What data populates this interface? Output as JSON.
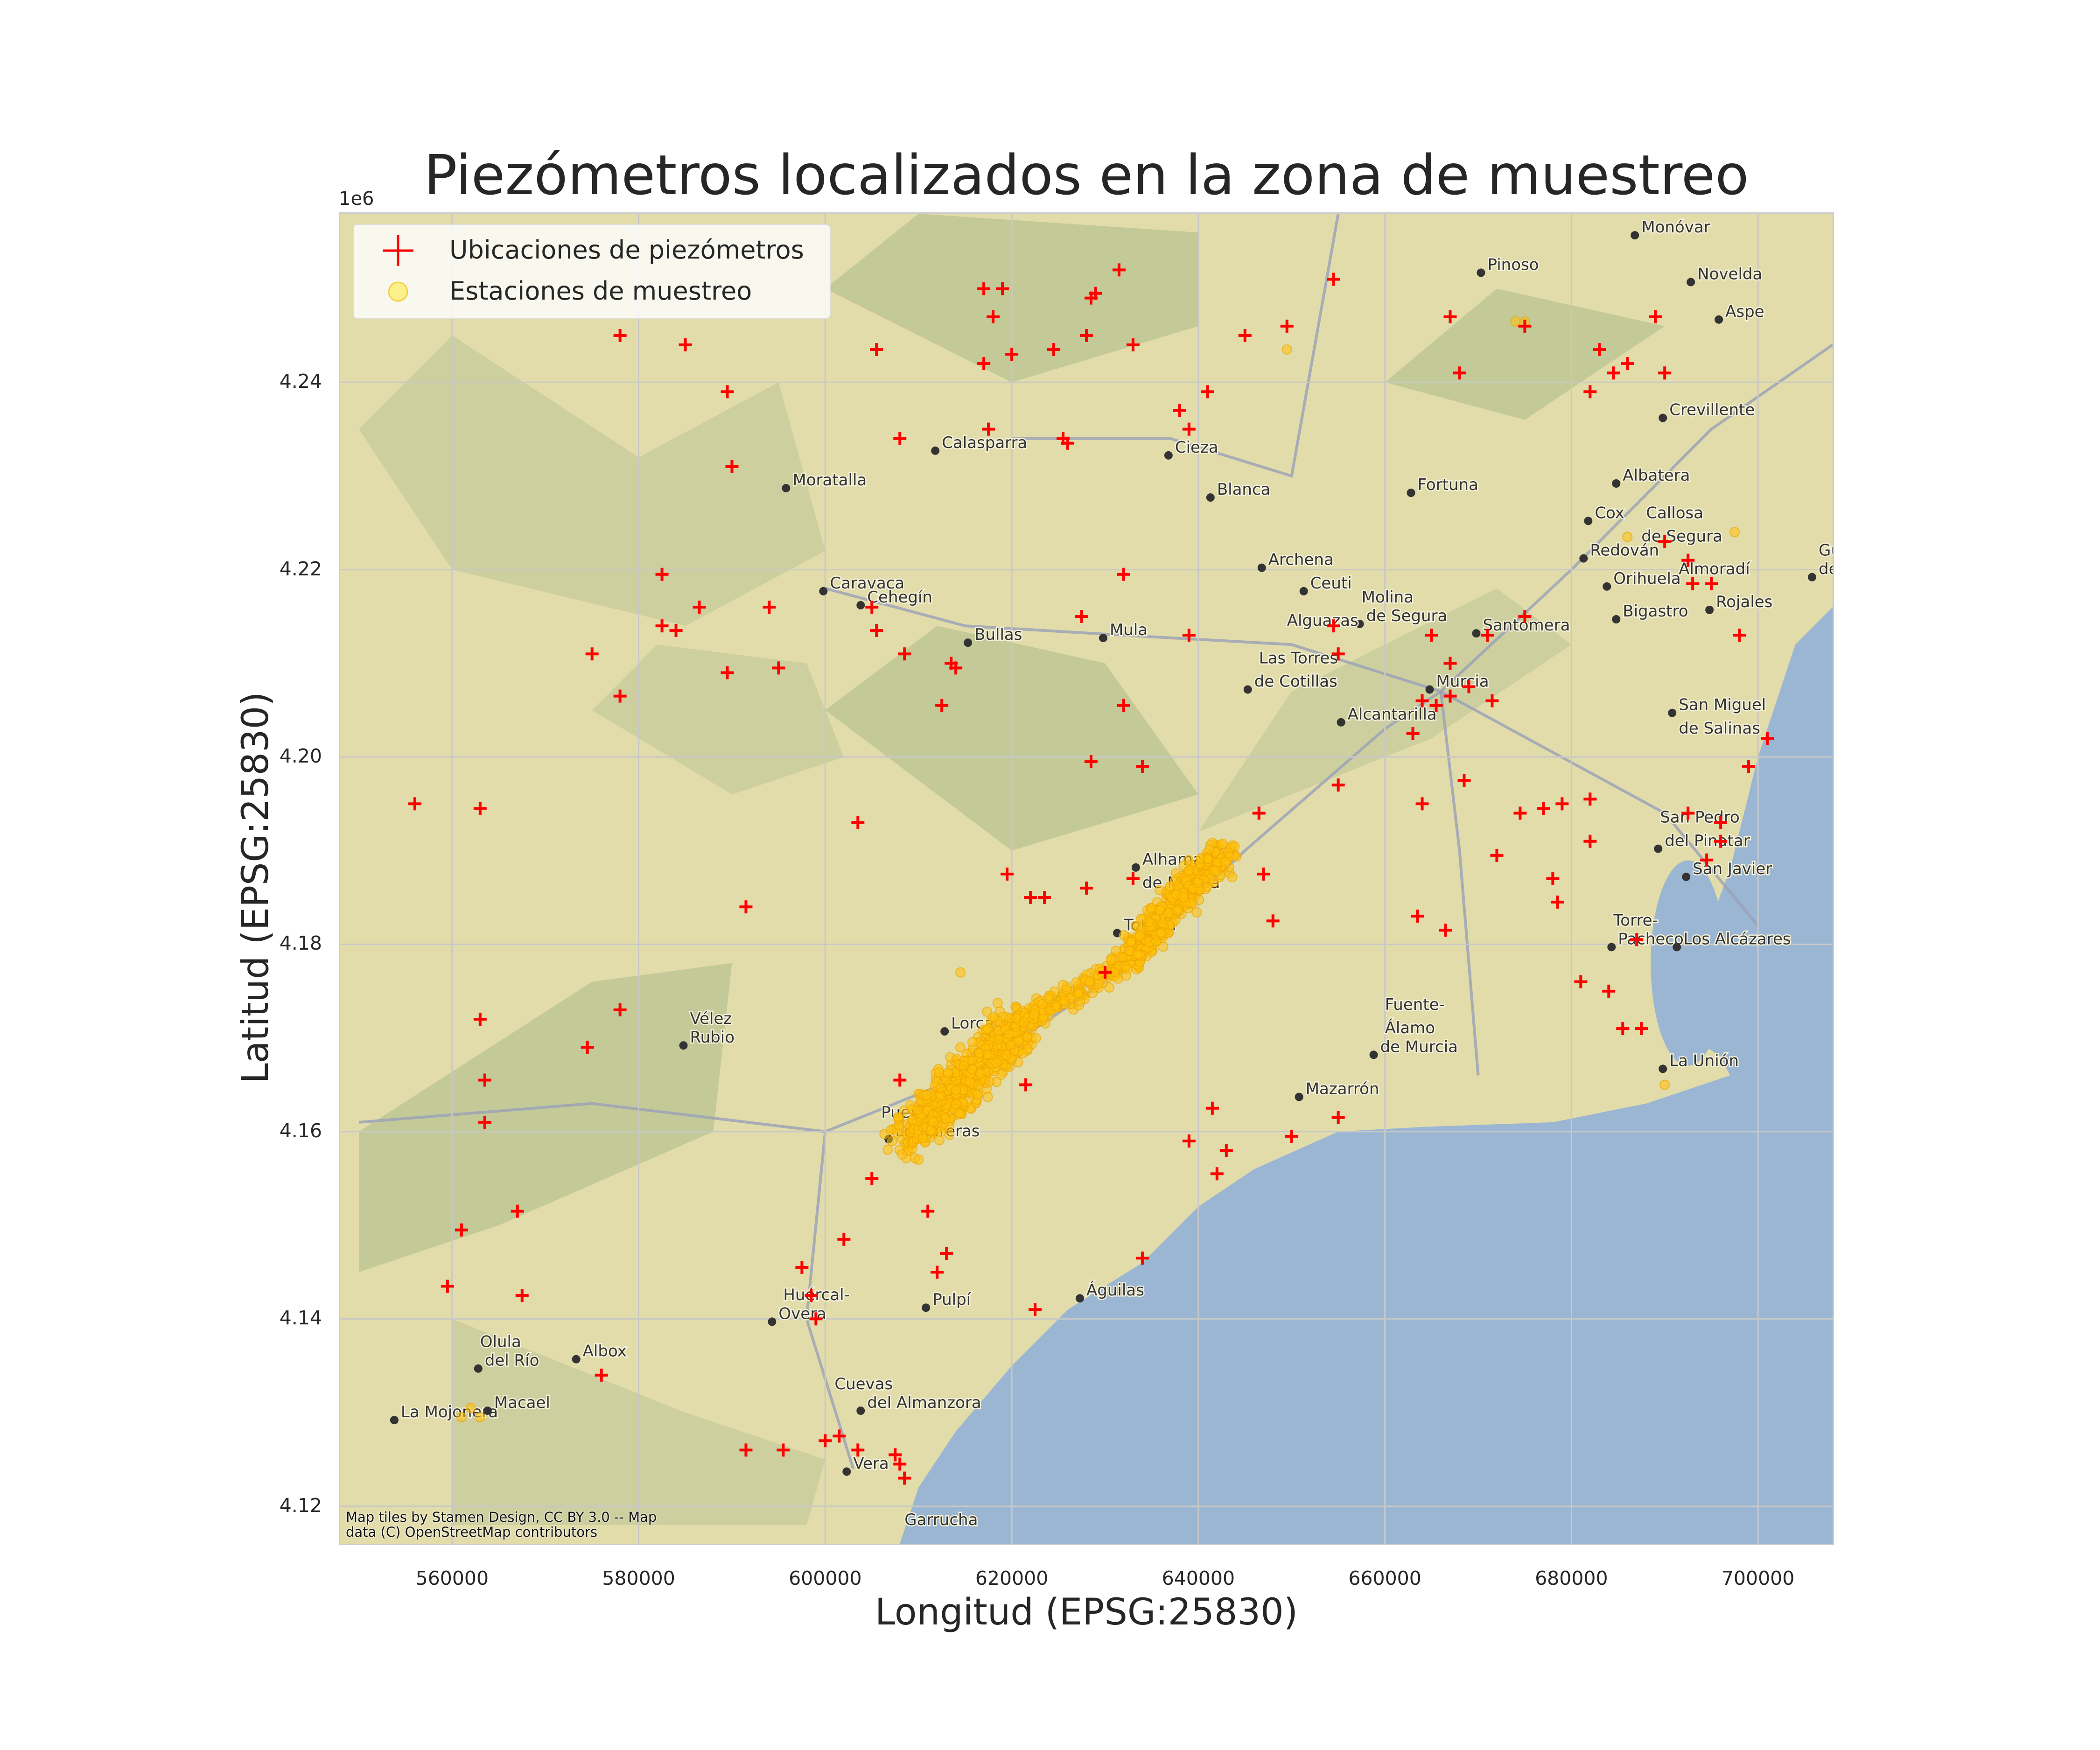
{
  "figure": {
    "title": "Piezómetros localizados en la zona de muestreo",
    "xlabel": "Longitud (EPSG:25830)",
    "ylabel": "Latitud (EPSG:25830)",
    "y_offset_label": "1e6",
    "attribution_line1": "Map tiles by Stamen Design, CC BY 3.0 -- Map",
    "attribution_line2": "data (C) OpenStreetMap contributors"
  },
  "legend": {
    "piezometers": "Ubicaciones de piezómetros",
    "stations": "Estaciones de muestreo"
  },
  "colors": {
    "piezometer": "#ff0000",
    "station": "#ffc107",
    "sea": "#9bb6d2",
    "land": "#e2dcaa",
    "grid": "#c8c8c8"
  },
  "chart_data": {
    "type": "scatter",
    "title": "Piezómetros localizados en la zona de muestreo",
    "xlabel": "Longitud (EPSG:25830)",
    "ylabel": "Latitud (EPSG:25830)",
    "xlim": [
      548000,
      708000
    ],
    "ylim": [
      4116000,
      4258000
    ],
    "grid": true,
    "legend_position": "top-left",
    "x_ticks": [
      560000,
      580000,
      600000,
      620000,
      640000,
      660000,
      680000,
      700000
    ],
    "y_ticks": [
      4120000,
      4140000,
      4160000,
      4180000,
      4200000,
      4220000,
      4240000
    ],
    "y_tick_labels": [
      "4.12",
      "4.14",
      "4.16",
      "4.18",
      "4.20",
      "4.22",
      "4.24"
    ],
    "y_offset": "1e6",
    "series": [
      {
        "name": "Ubicaciones de piezómetros",
        "marker": "+",
        "color": "#ff0000",
        "points": [
          [
            617000,
            4250000
          ],
          [
            619000,
            4250000
          ],
          [
            628500,
            4249000
          ],
          [
            629000,
            4249500
          ],
          [
            631500,
            4252000
          ],
          [
            654500,
            4251000
          ],
          [
            618000,
            4247000
          ],
          [
            628000,
            4245000
          ],
          [
            645000,
            4245000
          ],
          [
            649500,
            4246000
          ],
          [
            667000,
            4247000
          ],
          [
            675000,
            4246000
          ],
          [
            689000,
            4247000
          ],
          [
            578000,
            4245000
          ],
          [
            585000,
            4244000
          ],
          [
            605500,
            4243500
          ],
          [
            624500,
            4243500
          ],
          [
            633000,
            4244000
          ],
          [
            683000,
            4243500
          ],
          [
            617000,
            4242000
          ],
          [
            620000,
            4243000
          ],
          [
            686000,
            4242000
          ],
          [
            668000,
            4241000
          ],
          [
            684500,
            4241000
          ],
          [
            690000,
            4241000
          ],
          [
            589500,
            4239000
          ],
          [
            641000,
            4239000
          ],
          [
            682000,
            4239000
          ],
          [
            638000,
            4237000
          ],
          [
            639000,
            4235000
          ],
          [
            608000,
            4234000
          ],
          [
            617500,
            4235000
          ],
          [
            625500,
            4234000
          ],
          [
            626000,
            4233500
          ],
          [
            590000,
            4231000
          ],
          [
            632000,
            4219500
          ],
          [
            582500,
            4219500
          ],
          [
            586500,
            4216000
          ],
          [
            594000,
            4216000
          ],
          [
            605000,
            4216000
          ],
          [
            582500,
            4214000
          ],
          [
            584000,
            4213500
          ],
          [
            605500,
            4213500
          ],
          [
            613500,
            4210000
          ],
          [
            608500,
            4211000
          ],
          [
            639000,
            4213000
          ],
          [
            654500,
            4214000
          ],
          [
            665000,
            4213000
          ],
          [
            671000,
            4213000
          ],
          [
            675000,
            4215000
          ],
          [
            627500,
            4215000
          ],
          [
            575000,
            4211000
          ],
          [
            589500,
            4209000
          ],
          [
            595000,
            4209500
          ],
          [
            614000,
            4209500
          ],
          [
            655000,
            4211000
          ],
          [
            578000,
            4206500
          ],
          [
            612500,
            4205500
          ],
          [
            632000,
            4205500
          ],
          [
            667000,
            4210000
          ],
          [
            667000,
            4206500
          ],
          [
            669000,
            4207500
          ],
          [
            664000,
            4206000
          ],
          [
            665500,
            4205500
          ],
          [
            671500,
            4206000
          ],
          [
            698000,
            4213000
          ],
          [
            693000,
            4218500
          ],
          [
            695000,
            4218500
          ],
          [
            692500,
            4221000
          ],
          [
            690000,
            4223000
          ],
          [
            663000,
            4202500
          ],
          [
            701000,
            4202000
          ],
          [
            628500,
            4199500
          ],
          [
            634000,
            4199000
          ],
          [
            655000,
            4197000
          ],
          [
            668500,
            4197500
          ],
          [
            556000,
            4195000
          ],
          [
            563000,
            4194500
          ],
          [
            603500,
            4193000
          ],
          [
            646500,
            4194000
          ],
          [
            664000,
            4195000
          ],
          [
            674500,
            4194000
          ],
          [
            677000,
            4194500
          ],
          [
            679000,
            4195000
          ],
          [
            682000,
            4195500
          ],
          [
            692500,
            4194000
          ],
          [
            696000,
            4193000
          ],
          [
            699000,
            4199000
          ],
          [
            619500,
            4187500
          ],
          [
            628000,
            4186000
          ],
          [
            633000,
            4187000
          ],
          [
            647000,
            4187500
          ],
          [
            672000,
            4189500
          ],
          [
            682000,
            4191000
          ],
          [
            696000,
            4191000
          ],
          [
            678000,
            4187000
          ],
          [
            622000,
            4185000
          ],
          [
            623500,
            4185000
          ],
          [
            591500,
            4184000
          ],
          [
            648000,
            4182500
          ],
          [
            663500,
            4183000
          ],
          [
            666500,
            4181500
          ],
          [
            678500,
            4184500
          ],
          [
            687000,
            4180500
          ],
          [
            694500,
            4189000
          ],
          [
            578000,
            4173000
          ],
          [
            563000,
            4172000
          ],
          [
            574500,
            4169000
          ],
          [
            630000,
            4177000
          ],
          [
            681000,
            4176000
          ],
          [
            684000,
            4175000
          ],
          [
            685500,
            4171000
          ],
          [
            687500,
            4171000
          ],
          [
            563500,
            4165500
          ],
          [
            621500,
            4165000
          ],
          [
            608000,
            4165500
          ],
          [
            563500,
            4161000
          ],
          [
            641500,
            4162500
          ],
          [
            655000,
            4161500
          ],
          [
            639000,
            4159000
          ],
          [
            643000,
            4158000
          ],
          [
            650000,
            4159500
          ],
          [
            605000,
            4155000
          ],
          [
            642000,
            4155500
          ],
          [
            611000,
            4151500
          ],
          [
            561000,
            4149500
          ],
          [
            567000,
            4151500
          ],
          [
            602000,
            4148500
          ],
          [
            613000,
            4147000
          ],
          [
            597500,
            4145500
          ],
          [
            612000,
            4145000
          ],
          [
            634000,
            4146500
          ],
          [
            559500,
            4143500
          ],
          [
            567500,
            4142500
          ],
          [
            598500,
            4142500
          ],
          [
            599000,
            4140000
          ],
          [
            622500,
            4141000
          ],
          [
            576000,
            4134000
          ],
          [
            591500,
            4126000
          ],
          [
            595500,
            4126000
          ],
          [
            600000,
            4127000
          ],
          [
            601500,
            4127500
          ],
          [
            603500,
            4126000
          ],
          [
            607500,
            4125500
          ],
          [
            608500,
            4123000
          ],
          [
            608000,
            4124500
          ]
        ]
      },
      {
        "name": "Estaciones de muestreo",
        "marker": "o",
        "color": "#ffc107",
        "points": [
          [
            614500,
            4177000
          ],
          [
            649500,
            4243500
          ],
          [
            674000,
            4246500
          ],
          [
            675000,
            4246500
          ],
          [
            686000,
            4223500
          ],
          [
            697500,
            4224000
          ],
          [
            690000,
            4165000
          ],
          [
            562000,
            4130500
          ],
          [
            561000,
            4129500
          ],
          [
            563000,
            4129500
          ],
          [
            610000,
            4157000
          ]
        ],
        "clusters": [
          {
            "from": [
              609000,
              4159500
            ],
            "to": [
              621000,
              4171500
            ],
            "spread_x": 3500,
            "spread_y": 3500,
            "count": 650
          },
          {
            "from": [
              620000,
              4171000
            ],
            "to": [
              632000,
              4178000
            ],
            "spread_x": 2800,
            "spread_y": 1500,
            "count": 160
          },
          {
            "from": [
              632000,
              4178000
            ],
            "to": [
              643000,
              4190500
            ],
            "spread_x": 2600,
            "spread_y": 2300,
            "count": 420
          }
        ]
      }
    ]
  },
  "map_labels": [
    {
      "text": "Monóvar",
      "x": 688000,
      "y": 4256000,
      "dot": true
    },
    {
      "text": "Pinoso",
      "x": 671500,
      "y": 4252000,
      "dot": true
    },
    {
      "text": "Novelda",
      "x": 694000,
      "y": 4251000,
      "dot": true
    },
    {
      "text": "Aspe",
      "x": 697000,
      "y": 4247000,
      "dot": true
    },
    {
      "text": "Calasparra",
      "x": 613000,
      "y": 4233000,
      "dot": true
    },
    {
      "text": "Moratalla",
      "x": 597000,
      "y": 4229000,
      "dot": true
    },
    {
      "text": "Cieza",
      "x": 638000,
      "y": 4232500,
      "dot": true
    },
    {
      "text": "Blanca",
      "x": 642500,
      "y": 4228000,
      "dot": true
    },
    {
      "text": "Fortuna",
      "x": 664000,
      "y": 4228500,
      "dot": true
    },
    {
      "text": "Crevillente",
      "x": 691000,
      "y": 4236500,
      "dot": true
    },
    {
      "text": "Albatera",
      "x": 686000,
      "y": 4229500,
      "dot": true
    },
    {
      "text": "Cox",
      "x": 683000,
      "y": 4225500,
      "dot": true
    },
    {
      "text": "Callosa",
      "x": 688500,
      "y": 4225500,
      "dot": false
    },
    {
      "text": "de Segura",
      "x": 688000,
      "y": 4223000,
      "dot": false
    },
    {
      "text": "Redován",
      "x": 682500,
      "y": 4221500,
      "dot": true
    },
    {
      "text": "Archena",
      "x": 648000,
      "y": 4220500,
      "dot": true
    },
    {
      "text": "Ceuti",
      "x": 652500,
      "y": 4218000,
      "dot": true
    },
    {
      "text": "Molina",
      "x": 658000,
      "y": 4216500,
      "dot": false
    },
    {
      "text": "de Segura",
      "x": 658500,
      "y": 4214500,
      "dot": true
    },
    {
      "text": "Orihuela",
      "x": 685000,
      "y": 4218500,
      "dot": true
    },
    {
      "text": "Almoradí",
      "x": 692000,
      "y": 4219500,
      "dot": false
    },
    {
      "text": "Caravaca",
      "x": 601000,
      "y": 4218000,
      "dot": true
    },
    {
      "text": "Cehegín",
      "x": 605000,
      "y": 4216500,
      "dot": true
    },
    {
      "text": "Bullas",
      "x": 616500,
      "y": 4212500,
      "dot": true
    },
    {
      "text": "Mula",
      "x": 631000,
      "y": 4213000,
      "dot": true
    },
    {
      "text": "Alguazas",
      "x": 650000,
      "y": 4214000,
      "dot": false
    },
    {
      "text": "Santomera",
      "x": 671000,
      "y": 4213500,
      "dot": true
    },
    {
      "text": "Bigastro",
      "x": 686000,
      "y": 4215000,
      "dot": true
    },
    {
      "text": "Rojales",
      "x": 696000,
      "y": 4216000,
      "dot": true
    },
    {
      "text": "Las Torres",
      "x": 647000,
      "y": 4210000,
      "dot": false
    },
    {
      "text": "de Cotillas",
      "x": 646500,
      "y": 4207500,
      "dot": true
    },
    {
      "text": "Murcia",
      "x": 666000,
      "y": 4207500,
      "dot": true
    },
    {
      "text": "San Miguel",
      "x": 692000,
      "y": 4205000,
      "dot": true
    },
    {
      "text": "de Salinas",
      "x": 692000,
      "y": 4202500,
      "dot": false
    },
    {
      "text": "Alcantarilla",
      "x": 656500,
      "y": 4204000,
      "dot": true
    },
    {
      "text": "San Pedro",
      "x": 690000,
      "y": 4193000,
      "dot": false
    },
    {
      "text": "del Pinatar",
      "x": 690500,
      "y": 4190500,
      "dot": true
    },
    {
      "text": "San Javier",
      "x": 693500,
      "y": 4187500,
      "dot": true
    },
    {
      "text": "Alhama",
      "x": 634500,
      "y": 4188500,
      "dot": true
    },
    {
      "text": "de Murcia",
      "x": 634500,
      "y": 4186000,
      "dot": false
    },
    {
      "text": "Totana",
      "x": 632500,
      "y": 4181500,
      "dot": true
    },
    {
      "text": "Torre-",
      "x": 685000,
      "y": 4182000,
      "dot": false
    },
    {
      "text": "Pacheco",
      "x": 685500,
      "y": 4180000,
      "dot": true
    },
    {
      "text": "Los Alcázares",
      "x": 692500,
      "y": 4180000,
      "dot": true
    },
    {
      "text": "Vélez",
      "x": 586000,
      "y": 4171500,
      "dot": false
    },
    {
      "text": "Rubio",
      "x": 586000,
      "y": 4169500,
      "dot": true
    },
    {
      "text": "Lorca",
      "x": 614000,
      "y": 4171000,
      "dot": true
    },
    {
      "text": "Fuente-",
      "x": 660500,
      "y": 4173000,
      "dot": false
    },
    {
      "text": "Álamo",
      "x": 660500,
      "y": 4170500,
      "dot": false
    },
    {
      "text": "de Murcia",
      "x": 660000,
      "y": 4168500,
      "dot": true
    },
    {
      "text": "La Unión",
      "x": 691000,
      "y": 4167000,
      "dot": true
    },
    {
      "text": "Mazarrón",
      "x": 652000,
      "y": 4164000,
      "dot": true
    },
    {
      "text": "Puerto",
      "x": 606500,
      "y": 4161500,
      "dot": false
    },
    {
      "text": "Lumbreras",
      "x": 608000,
      "y": 4159500,
      "dot": true
    },
    {
      "text": "Águilas",
      "x": 628500,
      "y": 4142500,
      "dot": true
    },
    {
      "text": "Pulpí",
      "x": 612000,
      "y": 4141500,
      "dot": true
    },
    {
      "text": "Huércal-",
      "x": 596000,
      "y": 4142000,
      "dot": false
    },
    {
      "text": "Overa",
      "x": 595500,
      "y": 4140000,
      "dot": true
    },
    {
      "text": "Olula",
      "x": 563500,
      "y": 4137000,
      "dot": false
    },
    {
      "text": "del Río",
      "x": 564000,
      "y": 4135000,
      "dot": true
    },
    {
      "text": "Albox",
      "x": 574500,
      "y": 4136000,
      "dot": true
    },
    {
      "text": "Cuevas",
      "x": 601500,
      "y": 4132500,
      "dot": false
    },
    {
      "text": "del Almanzora",
      "x": 605000,
      "y": 4130500,
      "dot": true
    },
    {
      "text": "La Mojonera",
      "x": 555000,
      "y": 4129500,
      "dot": true
    },
    {
      "text": "Macael",
      "x": 565000,
      "y": 4130500,
      "dot": true
    },
    {
      "text": "Vera",
      "x": 603500,
      "y": 4124000,
      "dot": true
    },
    {
      "text": "Garrucha",
      "x": 609000,
      "y": 4118000,
      "dot": false
    },
    {
      "text": "Gu",
      "x": 707000,
      "y": 4221500,
      "dot": false
    },
    {
      "text": "de",
      "x": 707000,
      "y": 4219500,
      "dot": true
    }
  ]
}
